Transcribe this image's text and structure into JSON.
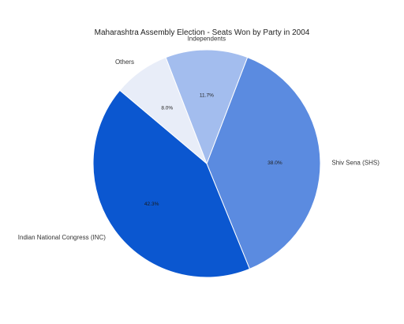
{
  "chart_data": {
    "type": "pie",
    "title": "Maharashtra Assembly Election - Seats Won by Party in 2004",
    "slices": [
      {
        "label": "Shiv Sena (SHS)",
        "value": 38.0,
        "display": "38.0%",
        "color": "#5b8be0",
        "text_color": "#222222"
      },
      {
        "label": "Indian National Congress (INC)",
        "value": 42.3,
        "display": "42.3%",
        "color": "#0b57d0",
        "text_color": "#1a1a1a"
      },
      {
        "label": "Others",
        "value": 8.0,
        "display": "8.0%",
        "color": "#e8edf8",
        "text_color": "#222222"
      },
      {
        "label": "Independents",
        "value": 11.7,
        "display": "11.7%",
        "color": "#a3bdee",
        "text_color": "#222222"
      }
    ],
    "legend": "none"
  }
}
